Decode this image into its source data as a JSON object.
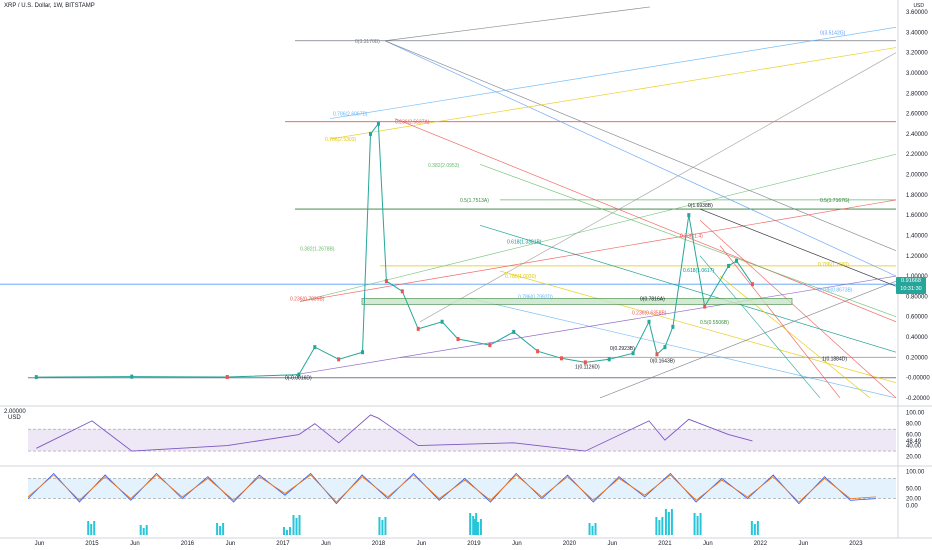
{
  "header": {
    "symbol": "XRP / U.S. Dollar, 1W, BITSTAMP"
  },
  "currency": "USD",
  "price_tag": {
    "value": "0.91668",
    "timer": "10:31:30"
  },
  "colors": {
    "up": "#26a69a",
    "down": "#ef5350",
    "rsi": "#7e57c2",
    "rsi_band": "#ede7f6",
    "stoch_band": "#e3f2fd",
    "stoch_k": "#2962ff",
    "stoch_d": "#ff6d00",
    "volume_up": "#26c6da"
  },
  "chart_data": [
    {
      "type": "line",
      "title": "XRP / U.S. Dollar, 1W, BITSTAMP",
      "x_ticks": [
        "Jun",
        "2015",
        "Jun",
        "2016",
        "Jun",
        "2017",
        "Jun",
        "2018",
        "Jun",
        "2019",
        "Jun",
        "2020",
        "Jun",
        "2021",
        "Jun",
        "2022",
        "Jun",
        "2023"
      ],
      "y_ticks": [
        "3.60000",
        "3.40000",
        "3.20000",
        "3.00000",
        "2.80000",
        "2.60000",
        "2.40000",
        "2.20000",
        "2.00000",
        "1.80000",
        "1.60000",
        "1.40000",
        "1.20000",
        "1.00000",
        "0.80000",
        "0.60000",
        "0.40000",
        "0.20000",
        "-0.00000",
        "-0.20000"
      ],
      "ylim": [
        -0.25,
        3.62
      ],
      "series": [
        {
          "name": "",
          "x": [
            "2014-06",
            "2015-06",
            "2016-06",
            "2017-03",
            "2017-05",
            "2017-08",
            "2017-11",
            "2017-12",
            "2018-01",
            "2018-02",
            "2018-04",
            "2018-06",
            "2018-09",
            "2018-11",
            "2019-03",
            "2019-06",
            "2019-09",
            "2019-12",
            "2020-03",
            "2020-06",
            "2020-09",
            "2020-11",
            "2020-12",
            "2021-01",
            "2021-02",
            "2021-04",
            "2021-06",
            "2021-09",
            "2021-10",
            "2021-12"
          ],
          "values": [
            0.005,
            0.01,
            0.006,
            0.03,
            0.3,
            0.18,
            0.25,
            2.4,
            2.5,
            0.95,
            0.85,
            0.48,
            0.55,
            0.38,
            0.32,
            0.45,
            0.26,
            0.19,
            0.15,
            0.18,
            0.24,
            0.55,
            0.23,
            0.3,
            0.5,
            1.6,
            0.7,
            1.1,
            1.15,
            0.92
          ]
        }
      ],
      "fib_levels": [
        {
          "label": "0(3.3170B)",
          "color": "#787b86"
        },
        {
          "label": "0(3.5142G)",
          "color": "#5b9cf6"
        },
        {
          "label": "0.786(2.6067B)",
          "color": "#64b5f6"
        },
        {
          "label": "0.236(2.5637A)",
          "color": "#ef5350"
        },
        {
          "label": "0.786(2.5303)",
          "color": "#e6c700"
        },
        {
          "label": "0.382(2.0953)",
          "color": "#66bb6a"
        },
        {
          "label": "0.5(1.7167G)",
          "color": "#2e7d32"
        },
        {
          "label": "0.5(1.7513A)",
          "color": "#388e3c"
        },
        {
          "label": "0(1.6938B)",
          "color": "#131722"
        },
        {
          "label": "0.618(1.3381B)",
          "color": "#009688"
        },
        {
          "label": "0.236(1.4)",
          "color": "#ef5350"
        },
        {
          "label": "0.382(1.2678B)",
          "color": "#66bb6a"
        },
        {
          "label": "0.786(1.1190)",
          "color": "#e6c700"
        },
        {
          "label": "0.786(1.0030)",
          "color": "#e6c700"
        },
        {
          "label": "0.618(1.0617)",
          "color": "#009688"
        },
        {
          "label": "0.786(0.8673B)",
          "color": "#64b5f6"
        },
        {
          "label": "0.236(0.7839B)",
          "color": "#ef5350"
        },
        {
          "label": "0.786(0.7992D)",
          "color": "#64b5f6"
        },
        {
          "label": "0(0.7816A)",
          "color": "#131722"
        },
        {
          "label": "0.236(0.6358B)",
          "color": "#ef5350"
        },
        {
          "label": "0.5(0.5506B)",
          "color": "#388e3c"
        },
        {
          "label": "0(0.2923B)",
          "color": "#131722"
        },
        {
          "label": "0(0.1643B)",
          "color": "#131722"
        },
        {
          "label": "1(0.1126D)",
          "color": "#131722"
        },
        {
          "label": "1(0.1884D)",
          "color": "#131722"
        },
        {
          "label": "0(-0.0016D)",
          "color": "#131722"
        }
      ]
    },
    {
      "type": "line",
      "title": "",
      "y_ticks": [
        "100.00",
        "80.00",
        "60.00",
        "48.49",
        "40.00",
        "20.00"
      ],
      "ylim": [
        10,
        105
      ],
      "band": [
        30,
        70
      ],
      "x": [
        "2014-06",
        "2015-01",
        "2015-06",
        "2016-06",
        "2017-03",
        "2017-05",
        "2017-08",
        "2017-12",
        "2018-01",
        "2018-06",
        "2019-06",
        "2020-03",
        "2020-11",
        "2021-01",
        "2021-04",
        "2021-09",
        "2021-12"
      ],
      "series": [
        {
          "name": "",
          "values": [
            35,
            85,
            30,
            40,
            60,
            80,
            45,
            96,
            90,
            40,
            45,
            30,
            85,
            50,
            88,
            60,
            48.49
          ]
        }
      ],
      "left_label": "2.00000\nUSD"
    },
    {
      "type": "line",
      "title": "",
      "y_ticks": [
        "100.00",
        "50.00",
        "20.00",
        "0.00"
      ],
      "ylim": [
        -5,
        105
      ],
      "band": [
        20,
        80
      ],
      "series": [
        {
          "name": "",
          "values": [
            20,
            95,
            10,
            90,
            15,
            95,
            20,
            85,
            10,
            90,
            30,
            95,
            5,
            90,
            20,
            95,
            15,
            80,
            10,
            95,
            20,
            90,
            10,
            85,
            25,
            95,
            10,
            80,
            20,
            90,
            5,
            85,
            15,
            20
          ]
        },
        {
          "name": "",
          "values": [
            25,
            90,
            15,
            85,
            20,
            90,
            25,
            80,
            15,
            85,
            35,
            90,
            10,
            85,
            25,
            90,
            20,
            75,
            15,
            90,
            25,
            85,
            15,
            80,
            30,
            90,
            15,
            75,
            25,
            85,
            10,
            80,
            20,
            25
          ]
        }
      ]
    },
    {
      "type": "bar",
      "title": "",
      "series": [
        {
          "name": "",
          "values": [
            0,
            0,
            0,
            0,
            0,
            0,
            0,
            0,
            0,
            0,
            0,
            0,
            0,
            0,
            0,
            0,
            0,
            0,
            0,
            0,
            0,
            0,
            0,
            0,
            0,
            0,
            0,
            0,
            0,
            0,
            0,
            0,
            0,
            0,
            0,
            0,
            0,
            0,
            0,
            0,
            0,
            0,
            0,
            0,
            0,
            0,
            0,
            0,
            0,
            0,
            0,
            0,
            0,
            0,
            0,
            0,
            0,
            0,
            0,
            0,
            0,
            0,
            0,
            0,
            0,
            0,
            0,
            0,
            0,
            0,
            0,
            0,
            0,
            0,
            0,
            0,
            0,
            0,
            0,
            0,
            0,
            0,
            0,
            0,
            0,
            0,
            0,
            0,
            0,
            0
          ]
        }
      ]
    }
  ]
}
